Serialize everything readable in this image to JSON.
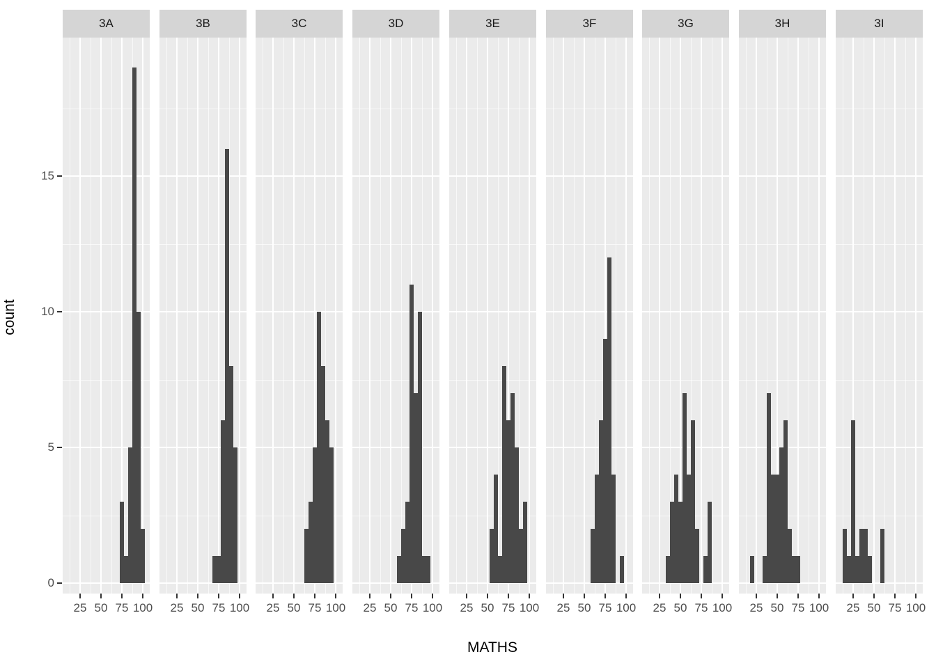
{
  "chart_data": {
    "type": "histogram",
    "title": "",
    "x_label": "MATHS",
    "y_label": "count",
    "facet_variable_values": [
      "3A",
      "3B",
      "3C",
      "3D",
      "3E",
      "3F",
      "3G",
      "3H",
      "3I"
    ],
    "x_ticks": [
      25,
      50,
      75,
      100
    ],
    "x_minor_gridlines": [
      12.5,
      37.5,
      62.5,
      87.5
    ],
    "y_ticks": [
      0,
      5,
      10,
      15
    ],
    "y_minor_gridlines": [
      2.5,
      7.5,
      12.5,
      17.5
    ],
    "bin_width": 5,
    "ylim": [
      0,
      20
    ],
    "grid": "on",
    "legend": "none",
    "colors": {
      "bar_fill": "#484848",
      "panel_background": "#EBEBEB",
      "strip_background": "#D5D5D5",
      "gridline": "#FFFFFF",
      "axis_text": "#4D4D4D",
      "strip_text": "#1A1A1A",
      "axis_title": "#000000",
      "tick_mark": "#333333"
    },
    "facets": [
      {
        "label": "3A",
        "bins": [
          {
            "x": 75,
            "count": 3
          },
          {
            "x": 80,
            "count": 1
          },
          {
            "x": 85,
            "count": 5
          },
          {
            "x": 90,
            "count": 19
          },
          {
            "x": 95,
            "count": 10
          },
          {
            "x": 100,
            "count": 2
          }
        ]
      },
      {
        "label": "3B",
        "bins": [
          {
            "x": 70,
            "count": 1
          },
          {
            "x": 75,
            "count": 1
          },
          {
            "x": 80,
            "count": 6
          },
          {
            "x": 85,
            "count": 16
          },
          {
            "x": 90,
            "count": 8
          },
          {
            "x": 95,
            "count": 5
          }
        ]
      },
      {
        "label": "3C",
        "bins": [
          {
            "x": 65,
            "count": 2
          },
          {
            "x": 70,
            "count": 3
          },
          {
            "x": 75,
            "count": 5
          },
          {
            "x": 80,
            "count": 10
          },
          {
            "x": 85,
            "count": 8
          },
          {
            "x": 90,
            "count": 6
          },
          {
            "x": 95,
            "count": 5
          }
        ]
      },
      {
        "label": "3D",
        "bins": [
          {
            "x": 60,
            "count": 1
          },
          {
            "x": 65,
            "count": 2
          },
          {
            "x": 70,
            "count": 3
          },
          {
            "x": 75,
            "count": 11
          },
          {
            "x": 80,
            "count": 7
          },
          {
            "x": 85,
            "count": 10
          },
          {
            "x": 90,
            "count": 1
          },
          {
            "x": 95,
            "count": 1
          }
        ]
      },
      {
        "label": "3E",
        "bins": [
          {
            "x": 55,
            "count": 2
          },
          {
            "x": 60,
            "count": 4
          },
          {
            "x": 65,
            "count": 1
          },
          {
            "x": 70,
            "count": 8
          },
          {
            "x": 75,
            "count": 6
          },
          {
            "x": 80,
            "count": 7
          },
          {
            "x": 85,
            "count": 5
          },
          {
            "x": 90,
            "count": 2
          },
          {
            "x": 95,
            "count": 3
          }
        ]
      },
      {
        "label": "3F",
        "bins": [
          {
            "x": 60,
            "count": 2
          },
          {
            "x": 65,
            "count": 4
          },
          {
            "x": 70,
            "count": 6
          },
          {
            "x": 75,
            "count": 9
          },
          {
            "x": 80,
            "count": 12
          },
          {
            "x": 85,
            "count": 4
          },
          {
            "x": 90,
            "count": 0
          },
          {
            "x": 95,
            "count": 1
          }
        ]
      },
      {
        "label": "3G",
        "bins": [
          {
            "x": 35,
            "count": 1
          },
          {
            "x": 40,
            "count": 3
          },
          {
            "x": 45,
            "count": 4
          },
          {
            "x": 50,
            "count": 3
          },
          {
            "x": 55,
            "count": 7
          },
          {
            "x": 60,
            "count": 4
          },
          {
            "x": 65,
            "count": 6
          },
          {
            "x": 70,
            "count": 2
          },
          {
            "x": 75,
            "count": 0
          },
          {
            "x": 80,
            "count": 1
          },
          {
            "x": 85,
            "count": 3
          }
        ]
      },
      {
        "label": "3H",
        "bins": [
          {
            "x": 20,
            "count": 1
          },
          {
            "x": 25,
            "count": 0
          },
          {
            "x": 30,
            "count": 0
          },
          {
            "x": 35,
            "count": 1
          },
          {
            "x": 40,
            "count": 7
          },
          {
            "x": 45,
            "count": 4
          },
          {
            "x": 50,
            "count": 4
          },
          {
            "x": 55,
            "count": 5
          },
          {
            "x": 60,
            "count": 6
          },
          {
            "x": 65,
            "count": 2
          },
          {
            "x": 70,
            "count": 1
          },
          {
            "x": 75,
            "count": 1
          }
        ]
      },
      {
        "label": "3I",
        "bins": [
          {
            "x": 15,
            "count": 2
          },
          {
            "x": 20,
            "count": 1
          },
          {
            "x": 25,
            "count": 6
          },
          {
            "x": 30,
            "count": 1
          },
          {
            "x": 35,
            "count": 2
          },
          {
            "x": 40,
            "count": 2
          },
          {
            "x": 45,
            "count": 1
          },
          {
            "x": 50,
            "count": 0
          },
          {
            "x": 55,
            "count": 0
          },
          {
            "x": 60,
            "count": 2
          }
        ]
      }
    ]
  }
}
